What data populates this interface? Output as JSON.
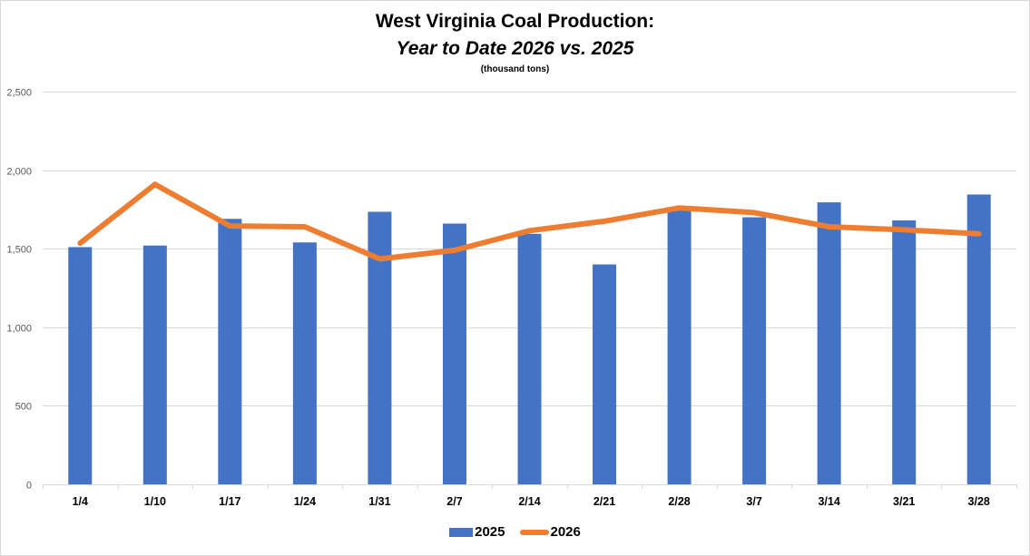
{
  "chart_data": {
    "type": "bar+line",
    "title": "West Virginia Coal Production:",
    "subtitle": "Year to Date 2026 vs. 2025",
    "units_label": "(thousand tons)",
    "xlabel": "",
    "ylabel": "",
    "ylim": [
      0,
      2500
    ],
    "yticks": [
      0,
      500,
      1000,
      1500,
      2000,
      2500
    ],
    "ytick_labels": [
      "0",
      "500",
      "1,000",
      "1,500",
      "2,000",
      "2,500"
    ],
    "grid": true,
    "legend_position": "bottom-center",
    "categories": [
      "1/4",
      "1/10",
      "1/17",
      "1/24",
      "1/31",
      "2/7",
      "2/14",
      "2/21",
      "2/28",
      "3/7",
      "3/14",
      "3/21",
      "3/28"
    ],
    "series": [
      {
        "name": "2025",
        "type": "bar",
        "color": "#4472c4",
        "values": [
          1510,
          1520,
          1690,
          1540,
          1735,
          1660,
          1595,
          1400,
          1745,
          1700,
          1795,
          1680,
          1845
        ]
      },
      {
        "name": "2026",
        "type": "line",
        "color": "#ed7d31",
        "values": [
          1535,
          1910,
          1645,
          1640,
          1435,
          1490,
          1615,
          1675,
          1760,
          1730,
          1640,
          1620,
          1595
        ]
      }
    ]
  }
}
